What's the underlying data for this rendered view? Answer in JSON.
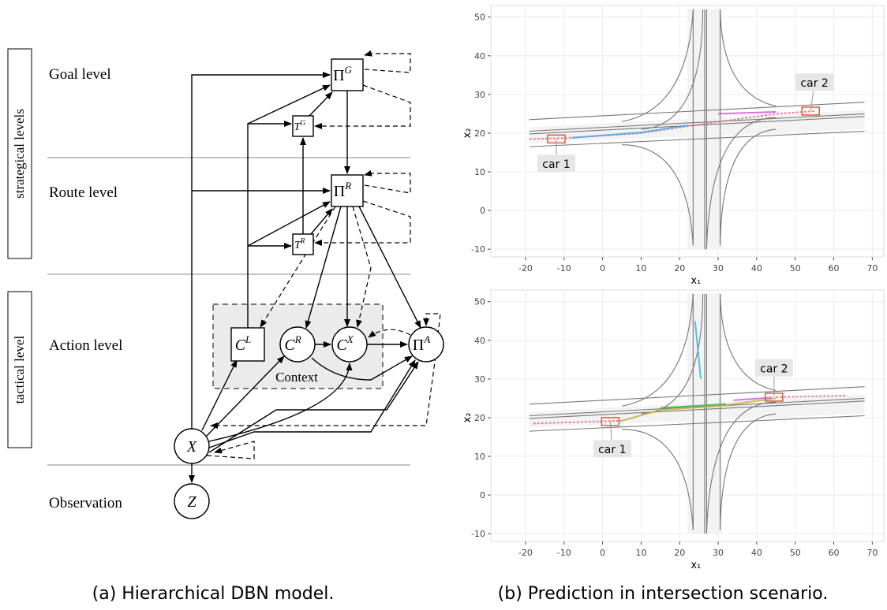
{
  "diagram": {
    "side_labels": [
      "strategical levels",
      "tactical level"
    ],
    "levels": [
      "Goal level",
      "Route level",
      "Action level",
      "Observation"
    ],
    "nodes": [
      {
        "base": "Π",
        "sup": "G"
      },
      {
        "base": "T",
        "sup": "G"
      },
      {
        "base": "Π",
        "sup": "R"
      },
      {
        "base": "T",
        "sup": "R"
      },
      {
        "base": "C",
        "sup": "L"
      },
      {
        "base": "C",
        "sup": "R"
      },
      {
        "base": "C",
        "sup": "X"
      },
      {
        "base": "Π",
        "sup": "A"
      },
      {
        "base": "X"
      },
      {
        "base": "Z"
      }
    ],
    "context_label": "Context",
    "caption": "(a) Hierarchical DBN model."
  },
  "plots": [
    {
      "xlim": [
        -29,
        73
      ],
      "ylim": [
        -12,
        53
      ],
      "xticks": [
        -20,
        -10,
        0,
        10,
        20,
        30,
        40,
        50,
        60,
        70
      ],
      "yticks": [
        -10,
        0,
        10,
        20,
        30,
        40,
        50
      ],
      "xlabel": "x₁",
      "ylabel": "x₂",
      "annotations": [
        "car 1",
        "car 2"
      ]
    },
    {
      "xlim": [
        -29,
        73
      ],
      "ylim": [
        -12,
        53
      ],
      "xticks": [
        -20,
        -10,
        0,
        10,
        20,
        30,
        40,
        50,
        60,
        70
      ],
      "yticks": [
        -10,
        0,
        10,
        20,
        30,
        40,
        50
      ],
      "xlabel": "x₁",
      "ylabel": "x₂",
      "annotations": [
        "car 1",
        "car 2"
      ]
    }
  ],
  "caption": "(b) Prediction in intersection scenario."
}
